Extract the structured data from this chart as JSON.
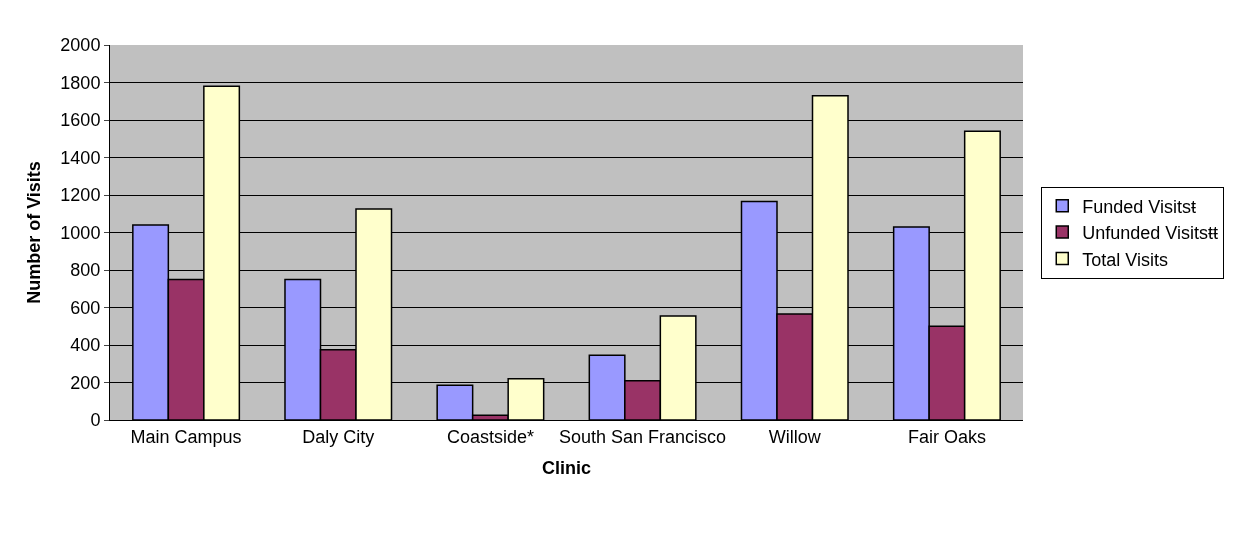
{
  "chart_data": {
    "type": "bar",
    "xlabel": "Clinic",
    "ylabel": "Number of Visits",
    "categories": [
      "Main Campus",
      "Daly City",
      "Coastside*",
      "South San Francisco",
      "Willow",
      "Fair Oaks"
    ],
    "series": [
      {
        "name": "Funded Visitsŧ",
        "color": "#9999ff",
        "values": [
          1040,
          750,
          185,
          345,
          1165,
          1030
        ]
      },
      {
        "name": "Unfunded Visitsŧŧ",
        "color": "#993366",
        "values": [
          750,
          375,
          25,
          210,
          565,
          500
        ]
      },
      {
        "name": "Total Visits",
        "color": "#ffffcc",
        "values": [
          1780,
          1125,
          220,
          555,
          1730,
          1540
        ]
      }
    ],
    "ylim": [
      0,
      2000
    ],
    "yticks": [
      0,
      200,
      400,
      600,
      800,
      1000,
      1200,
      1400,
      1600,
      1800,
      2000
    ],
    "grid": "y",
    "legend": "right"
  }
}
